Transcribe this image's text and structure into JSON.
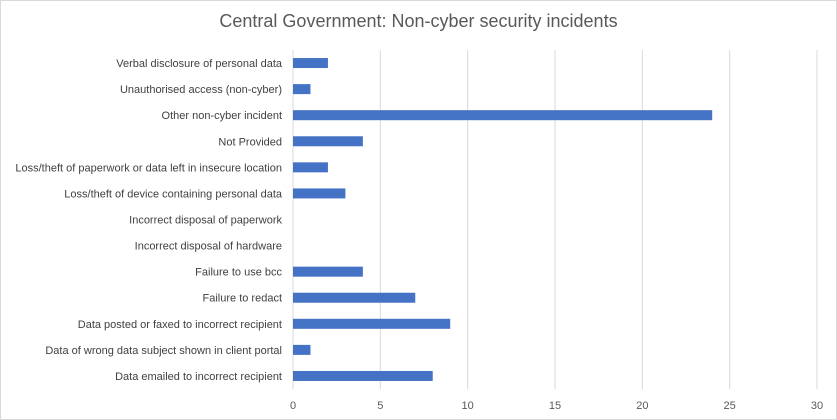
{
  "chart_data": {
    "type": "bar",
    "orientation": "horizontal",
    "title": "Central Government: Non-cyber security incidents",
    "xlabel": "",
    "ylabel": "",
    "categories": [
      "Verbal disclosure of personal data",
      "Unauthorised access (non-cyber)",
      "Other non-cyber incident",
      "Not Provided",
      "Loss/theft of paperwork or data left in insecure location",
      "Loss/theft of device containing personal data",
      "Incorrect disposal of paperwork",
      "Incorrect disposal of hardware",
      "Failure to use bcc",
      "Failure to redact",
      "Data posted or faxed to incorrect recipient",
      "Data of wrong data subject shown in client portal",
      "Data emailed to incorrect recipient"
    ],
    "values": [
      2,
      1,
      24,
      4,
      2,
      3,
      0,
      0,
      4,
      7,
      9,
      1,
      8
    ],
    "xlim": [
      0,
      30
    ],
    "xticks": [
      0,
      5,
      10,
      15,
      20,
      25,
      30
    ],
    "grid": "vertical",
    "legend": "none",
    "bar_color": "#4472c4",
    "grid_color": "#d9d9d9"
  }
}
